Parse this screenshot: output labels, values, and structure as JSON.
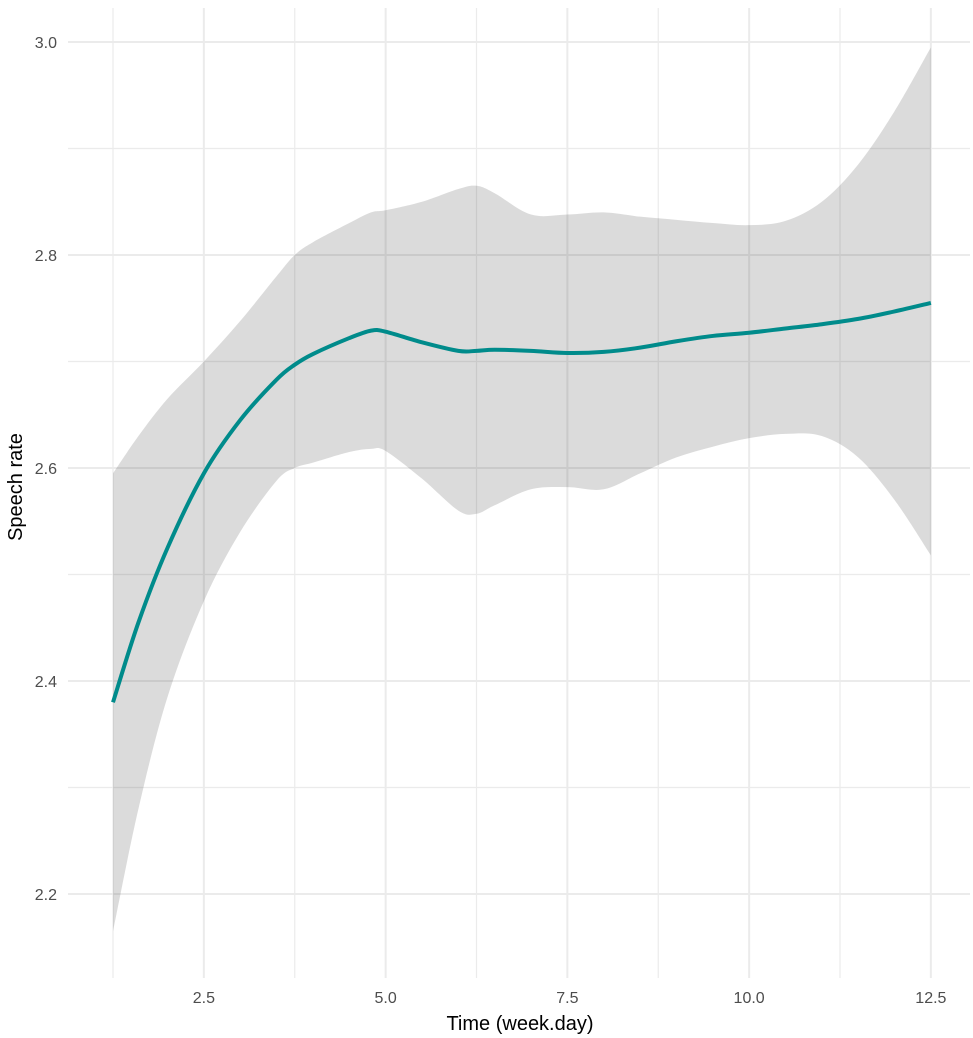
{
  "chart_data": {
    "type": "line",
    "title": "",
    "xlabel": "Time (week.day)",
    "ylabel": "Speech rate",
    "xlim": [
      0.9,
      13.0
    ],
    "ylim": [
      2.13,
      3.03
    ],
    "x_ticks": [
      2.5,
      5.0,
      7.5,
      10.0,
      12.5
    ],
    "x_tick_labels": [
      "2.5",
      "5.0",
      "7.5",
      "10.0",
      "12.5"
    ],
    "x_minor_ticks": [
      1.25,
      3.75,
      6.25,
      8.75,
      11.25
    ],
    "y_ticks": [
      2.2,
      2.4,
      2.6,
      2.8,
      3.0
    ],
    "y_tick_labels": [
      "2.2",
      "2.4",
      "2.6",
      "2.8",
      "3.0"
    ],
    "y_minor_ticks": [
      2.3,
      2.5,
      2.7,
      2.9
    ],
    "grid": true,
    "legend": null,
    "series": [
      {
        "name": "smooth fit",
        "color": "#008B8B",
        "x": [
          1.25,
          1.6,
          2.0,
          2.5,
          3.0,
          3.5,
          3.75,
          4.0,
          4.5,
          4.8,
          5.0,
          5.5,
          6.0,
          6.25,
          6.5,
          7.0,
          7.5,
          8.0,
          8.5,
          9.0,
          9.5,
          10.0,
          10.5,
          11.0,
          11.5,
          12.0,
          12.5
        ],
        "y": [
          2.38,
          2.455,
          2.525,
          2.595,
          2.645,
          2.683,
          2.697,
          2.707,
          2.722,
          2.729,
          2.728,
          2.718,
          2.71,
          2.71,
          2.711,
          2.71,
          2.708,
          2.709,
          2.713,
          2.719,
          2.724,
          2.727,
          2.731,
          2.735,
          2.74,
          2.747,
          2.755
        ],
        "ci_upper": [
          2.595,
          2.63,
          2.665,
          2.7,
          2.738,
          2.78,
          2.8,
          2.812,
          2.83,
          2.84,
          2.842,
          2.85,
          2.862,
          2.865,
          2.858,
          2.838,
          2.838,
          2.84,
          2.836,
          2.833,
          2.83,
          2.828,
          2.832,
          2.85,
          2.885,
          2.935,
          2.995
        ],
        "ci_lower": [
          2.165,
          2.28,
          2.385,
          2.475,
          2.54,
          2.588,
          2.6,
          2.605,
          2.615,
          2.618,
          2.616,
          2.59,
          2.56,
          2.557,
          2.565,
          2.58,
          2.582,
          2.58,
          2.595,
          2.61,
          2.62,
          2.628,
          2.632,
          2.63,
          2.61,
          2.57,
          2.518
        ]
      }
    ],
    "ci_fill_color": "#D9D9D9",
    "grid_color": "#EBEBEB"
  }
}
